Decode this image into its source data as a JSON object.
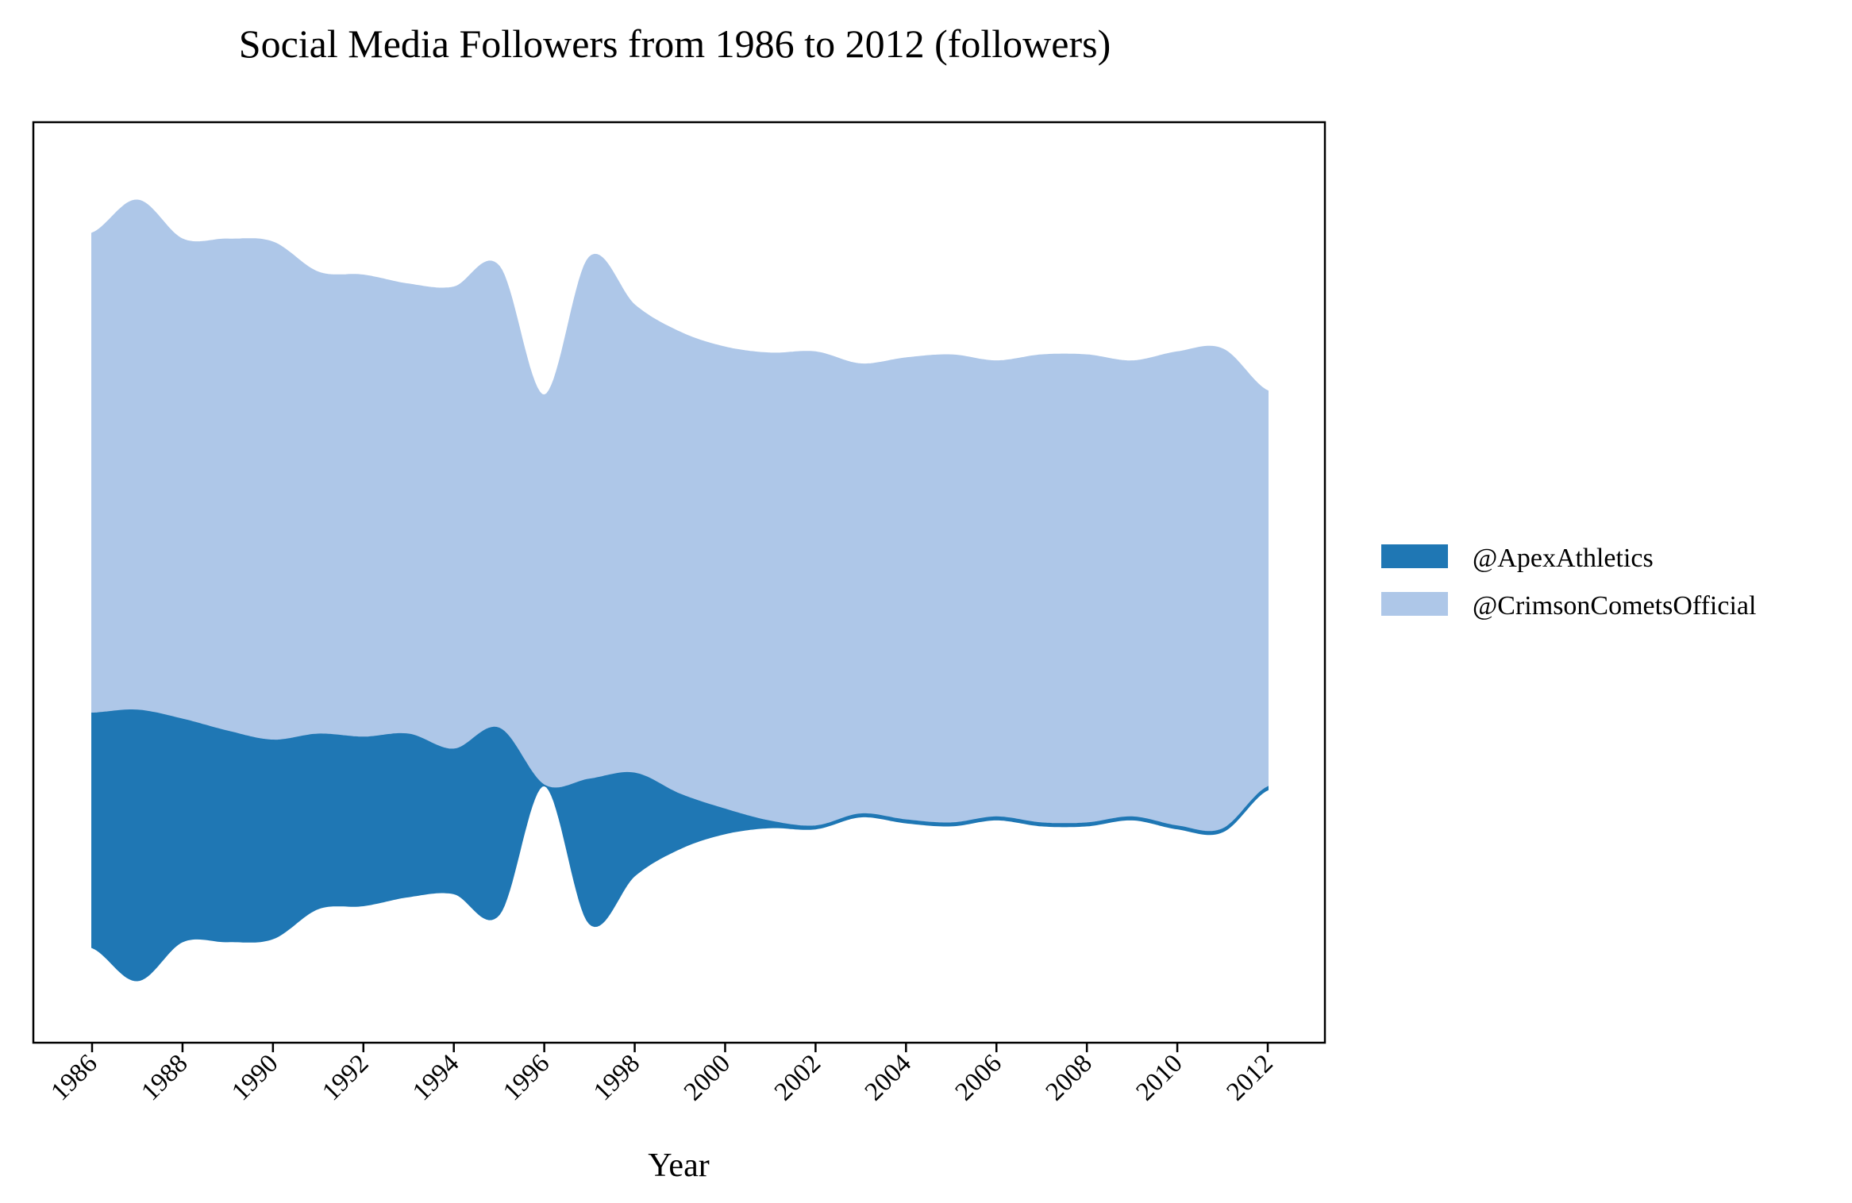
{
  "chart_data": {
    "type": "area",
    "subtype": "streamgraph",
    "title": "Social Media Followers from 1986 to 2012 (followers)",
    "xlabel": "Year",
    "ylabel": "",
    "x": [
      1986,
      1987,
      1988,
      1989,
      1990,
      1991,
      1992,
      1993,
      1994,
      1995,
      1996,
      1997,
      1998,
      1999,
      2000,
      2001,
      2002,
      2003,
      2004,
      2005,
      2006,
      2007,
      2008,
      2009,
      2010,
      2011,
      2012
    ],
    "x_ticks": [
      "1986",
      "1988",
      "1990",
      "1992",
      "1994",
      "1996",
      "1998",
      "2000",
      "2002",
      "2004",
      "2006",
      "2008",
      "2010",
      "2012"
    ],
    "xlim": [
      1984.7,
      2013.3
    ],
    "series": [
      {
        "name": "@ApexAthletics",
        "color": "#1f77b4",
        "values": [
          3900,
          4500,
          3700,
          3500,
          3300,
          2900,
          2800,
          2700,
          2400,
          3100,
          0,
          2400,
          1700,
          900,
          400,
          100,
          40,
          40,
          40,
          40,
          40,
          40,
          40,
          40,
          40,
          40,
          40
        ]
      },
      {
        "name": "@CrimsonComets2Official",
        "display_name": "@CrimsonCometsOfficial",
        "color": "#aec7e8",
        "values": [
          8000,
          8500,
          8000,
          8200,
          8300,
          7700,
          7700,
          7500,
          7700,
          7700,
          6500,
          8700,
          7800,
          7700,
          7700,
          7800,
          7900,
          7500,
          7700,
          7800,
          7600,
          7800,
          7800,
          7600,
          7900,
          8000,
          6600
        ]
      }
    ],
    "legend": {
      "position": "right-outside"
    },
    "grid": false
  }
}
